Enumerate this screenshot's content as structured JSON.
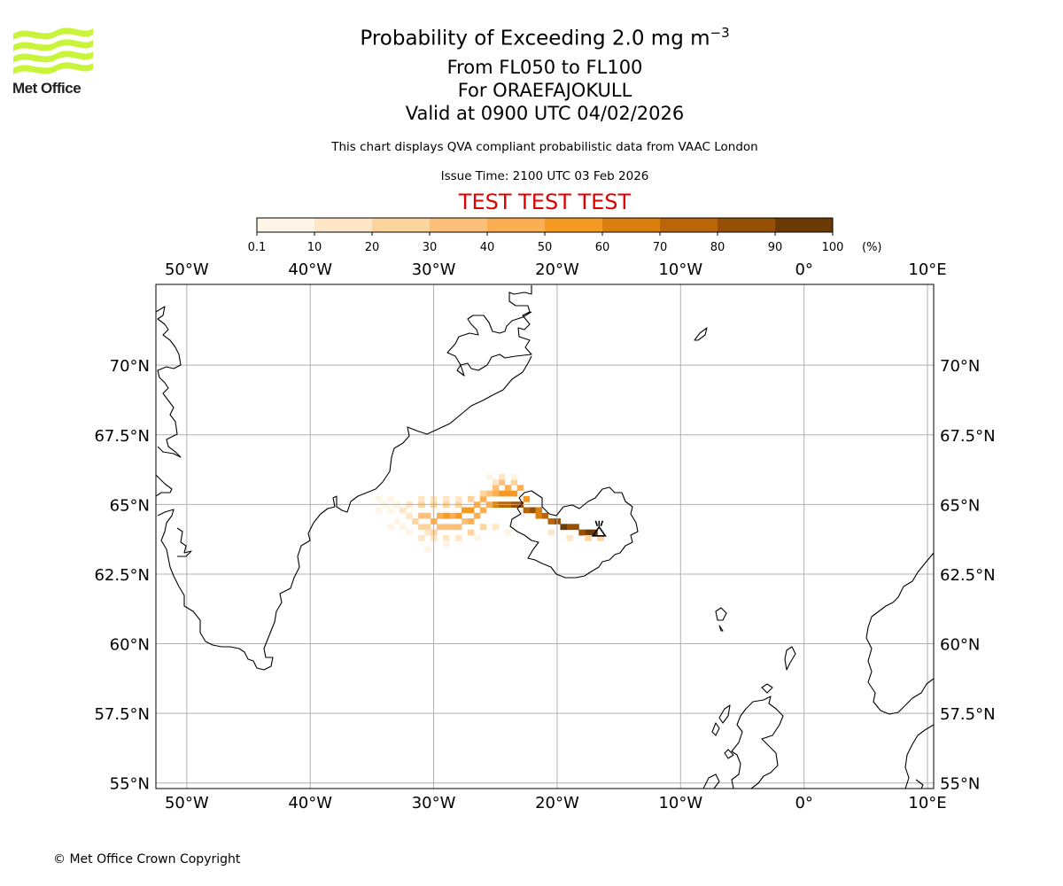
{
  "brand": {
    "logo_text": "Met Office",
    "logo_color": "#c8f53a"
  },
  "title": {
    "main": "Probability of Exceeding 2.0 mg m",
    "unit_superscript": "−3",
    "levels": "From FL050 to FL100",
    "volcano": "For ORAEFAJOKULL",
    "valid": "Valid at 0900 UTC 04/02/2026"
  },
  "subtitle": "This chart displays QVA compliant probabilistic data from VAAC London",
  "issue_time": "Issue Time: 2100 UTC 03 Feb 2026",
  "test_banner": {
    "text": "TEST TEST TEST",
    "color": "#e00000"
  },
  "colorbar": {
    "ticks": [
      "0.1",
      "10",
      "20",
      "30",
      "40",
      "50",
      "60",
      "70",
      "80",
      "90",
      "100"
    ],
    "unit": "(%)",
    "colors": [
      "#fff5e6",
      "#fee6c6",
      "#fdd49e",
      "#fcc07a",
      "#fbae52",
      "#f59a22",
      "#d9800f",
      "#b96508",
      "#955006",
      "#6b3a05"
    ]
  },
  "chart_data": {
    "type": "heatmap",
    "title": "Probability of Exceeding 2.0 mg m−3",
    "projection": "PlateCarree",
    "lon_range": [
      -52.5,
      10.5
    ],
    "lat_range": [
      54.8,
      72.9
    ],
    "x_ticks": [
      "50°W",
      "40°W",
      "30°W",
      "20°W",
      "10°W",
      "0°",
      "10°E"
    ],
    "x_tick_values": [
      -50,
      -40,
      -30,
      -20,
      -10,
      0,
      10
    ],
    "y_ticks": [
      "70°N",
      "67.5°N",
      "65°N",
      "62.5°N",
      "60°N",
      "57.5°N",
      "55°N"
    ],
    "y_tick_values": [
      70,
      67.5,
      65,
      62.5,
      60,
      57.5,
      55
    ],
    "grid": true,
    "source_volcano": {
      "name": "ORAEFAJOKULL",
      "lon": -16.6,
      "lat": 64.0
    },
    "plume_cells": [
      {
        "lon": -17.0,
        "lat": 64.0,
        "p": 95
      },
      {
        "lon": -17.5,
        "lat": 64.0,
        "p": 90
      },
      {
        "lon": -18.0,
        "lat": 64.0,
        "p": 85
      },
      {
        "lon": -18.5,
        "lat": 64.2,
        "p": 85
      },
      {
        "lon": -19.0,
        "lat": 64.2,
        "p": 80
      },
      {
        "lon": -19.5,
        "lat": 64.2,
        "p": 90
      },
      {
        "lon": -20.0,
        "lat": 64.4,
        "p": 80
      },
      {
        "lon": -20.5,
        "lat": 64.4,
        "p": 75
      },
      {
        "lon": -21.0,
        "lat": 64.6,
        "p": 70
      },
      {
        "lon": -21.5,
        "lat": 64.6,
        "p": 65
      },
      {
        "lon": -22.0,
        "lat": 64.8,
        "p": 80
      },
      {
        "lon": -22.5,
        "lat": 64.8,
        "p": 75
      },
      {
        "lon": -23.0,
        "lat": 65.0,
        "p": 85
      },
      {
        "lon": -23.5,
        "lat": 65.0,
        "p": 80
      },
      {
        "lon": -24.0,
        "lat": 65.0,
        "p": 75
      },
      {
        "lon": -24.5,
        "lat": 65.0,
        "p": 70
      },
      {
        "lon": -25.0,
        "lat": 65.0,
        "p": 65
      },
      {
        "lon": -21.5,
        "lat": 64.8,
        "p": 60
      },
      {
        "lon": -22.5,
        "lat": 65.2,
        "p": 55
      },
      {
        "lon": -23.5,
        "lat": 65.4,
        "p": 55
      },
      {
        "lon": -24.0,
        "lat": 65.4,
        "p": 50
      },
      {
        "lon": -24.5,
        "lat": 65.4,
        "p": 50
      },
      {
        "lon": -25.0,
        "lat": 65.4,
        "p": 45
      },
      {
        "lon": -23.0,
        "lat": 65.6,
        "p": 45
      },
      {
        "lon": -24.0,
        "lat": 65.6,
        "p": 40
      },
      {
        "lon": -24.5,
        "lat": 65.8,
        "p": 35
      },
      {
        "lon": -25.0,
        "lat": 65.6,
        "p": 30
      },
      {
        "lon": -25.5,
        "lat": 65.4,
        "p": 35
      },
      {
        "lon": -26.0,
        "lat": 65.2,
        "p": 40
      },
      {
        "lon": -26.5,
        "lat": 65.0,
        "p": 45
      },
      {
        "lon": -27.0,
        "lat": 64.8,
        "p": 50
      },
      {
        "lon": -27.5,
        "lat": 64.8,
        "p": 55
      },
      {
        "lon": -28.0,
        "lat": 64.6,
        "p": 50
      },
      {
        "lon": -28.5,
        "lat": 64.6,
        "p": 45
      },
      {
        "lon": -29.0,
        "lat": 64.6,
        "p": 50
      },
      {
        "lon": -29.5,
        "lat": 64.6,
        "p": 45
      },
      {
        "lon": -30.0,
        "lat": 64.4,
        "p": 40
      },
      {
        "lon": -30.5,
        "lat": 64.6,
        "p": 35
      },
      {
        "lon": -31.0,
        "lat": 64.6,
        "p": 30
      },
      {
        "lon": -25.5,
        "lat": 65.0,
        "p": 45
      },
      {
        "lon": -26.0,
        "lat": 64.8,
        "p": 45
      },
      {
        "lon": -26.5,
        "lat": 64.6,
        "p": 40
      },
      {
        "lon": -27.0,
        "lat": 64.4,
        "p": 40
      },
      {
        "lon": -27.5,
        "lat": 64.4,
        "p": 35
      },
      {
        "lon": -28.0,
        "lat": 64.2,
        "p": 35
      },
      {
        "lon": -28.5,
        "lat": 64.2,
        "p": 30
      },
      {
        "lon": -29.0,
        "lat": 64.2,
        "p": 35
      },
      {
        "lon": -29.5,
        "lat": 64.2,
        "p": 30
      },
      {
        "lon": -30.0,
        "lat": 64.0,
        "p": 25
      },
      {
        "lon": -30.5,
        "lat": 64.2,
        "p": 25
      },
      {
        "lon": -31.0,
        "lat": 64.2,
        "p": 20
      },
      {
        "lon": -31.5,
        "lat": 64.4,
        "p": 20
      },
      {
        "lon": -32.0,
        "lat": 64.6,
        "p": 15
      },
      {
        "lon": -32.5,
        "lat": 64.8,
        "p": 10
      },
      {
        "lon": -33.0,
        "lat": 65.0,
        "p": 8
      },
      {
        "lon": -33.5,
        "lat": 64.8,
        "p": 5
      },
      {
        "lon": -34.0,
        "lat": 65.0,
        "p": 5
      },
      {
        "lon": -32.0,
        "lat": 65.0,
        "p": 12
      },
      {
        "lon": -31.0,
        "lat": 65.0,
        "p": 20
      },
      {
        "lon": -30.0,
        "lat": 65.0,
        "p": 20
      },
      {
        "lon": -29.0,
        "lat": 65.0,
        "p": 25
      },
      {
        "lon": -28.0,
        "lat": 65.0,
        "p": 25
      },
      {
        "lon": -27.0,
        "lat": 65.2,
        "p": 20
      },
      {
        "lon": -26.0,
        "lat": 65.4,
        "p": 20
      },
      {
        "lon": -31.0,
        "lat": 65.2,
        "p": 10
      },
      {
        "lon": -30.0,
        "lat": 65.2,
        "p": 12
      },
      {
        "lon": -29.0,
        "lat": 65.2,
        "p": 12
      },
      {
        "lon": -28.0,
        "lat": 65.2,
        "p": 10
      },
      {
        "lon": -24.5,
        "lat": 66.0,
        "p": 15
      },
      {
        "lon": -23.5,
        "lat": 65.8,
        "p": 20
      },
      {
        "lon": -25.0,
        "lat": 65.8,
        "p": 10
      },
      {
        "lon": -23.5,
        "lat": 66.0,
        "p": 5
      },
      {
        "lon": -25.5,
        "lat": 66.0,
        "p": 5
      },
      {
        "lon": -30.5,
        "lat": 64.0,
        "p": 15
      },
      {
        "lon": -31.0,
        "lat": 63.8,
        "p": 10
      },
      {
        "lon": -30.0,
        "lat": 63.8,
        "p": 15
      },
      {
        "lon": -29.0,
        "lat": 63.8,
        "p": 15
      },
      {
        "lon": -28.0,
        "lat": 63.8,
        "p": 10
      },
      {
        "lon": -27.0,
        "lat": 64.0,
        "p": 20
      },
      {
        "lon": -26.0,
        "lat": 64.2,
        "p": 25
      },
      {
        "lon": -25.0,
        "lat": 64.2,
        "p": 15
      },
      {
        "lon": -33.0,
        "lat": 64.4,
        "p": 5
      },
      {
        "lon": -32.5,
        "lat": 64.2,
        "p": 8
      },
      {
        "lon": -32.0,
        "lat": 64.0,
        "p": 5
      },
      {
        "lon": -33.5,
        "lat": 64.2,
        "p": 3
      },
      {
        "lon": -34.5,
        "lat": 64.8,
        "p": 2
      },
      {
        "lon": -34.5,
        "lat": 65.2,
        "p": 2
      },
      {
        "lon": -33.5,
        "lat": 65.2,
        "p": 3
      },
      {
        "lon": -30.5,
        "lat": 63.4,
        "p": 2
      },
      {
        "lon": -29.0,
        "lat": 63.6,
        "p": 3
      },
      {
        "lon": -26.5,
        "lat": 63.8,
        "p": 3
      },
      {
        "lon": -24.0,
        "lat": 64.0,
        "p": 5
      },
      {
        "lon": -20.5,
        "lat": 64.0,
        "p": 15
      },
      {
        "lon": -19.0,
        "lat": 63.8,
        "p": 10
      },
      {
        "lon": -17.5,
        "lat": 63.8,
        "p": 20
      },
      {
        "lon": -16.5,
        "lat": 63.8,
        "p": 25
      }
    ]
  },
  "copyright": "© Met Office Crown Copyright"
}
